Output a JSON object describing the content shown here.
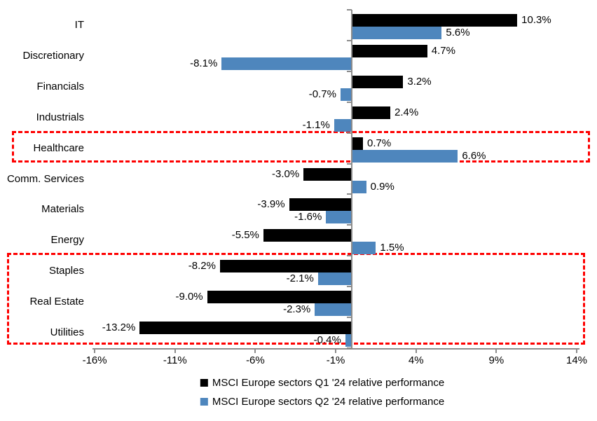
{
  "chart_data": {
    "type": "bar",
    "orientation": "horizontal",
    "title": "",
    "xlabel": "",
    "ylabel": "",
    "xlim": [
      -16,
      14
    ],
    "grid": false,
    "legend_position": "bottom",
    "categories": [
      "IT",
      "Discretionary",
      "Financials",
      "Industrials",
      "Healthcare",
      "Comm. Services",
      "Materials",
      "Energy",
      "Staples",
      "Real Estate",
      "Utilities"
    ],
    "series": [
      {
        "name": "MSCI Europe sectors Q1 '24 relative performance",
        "color": "#000000",
        "values": [
          10.3,
          4.7,
          3.2,
          2.4,
          0.7,
          -3.0,
          -3.9,
          -5.5,
          -8.2,
          -9.0,
          -13.2
        ],
        "labels": [
          "10.3%",
          "4.7%",
          "3.2%",
          "2.4%",
          "0.7%",
          "-3.0%",
          "-3.9%",
          "-5.5%",
          "-8.2%",
          "-9.0%",
          "-13.2%"
        ]
      },
      {
        "name": "MSCI Europe sectors Q2 '24 relative performance",
        "color": "#4e86bd",
        "values": [
          5.6,
          -8.1,
          -0.7,
          -1.1,
          6.6,
          0.9,
          -1.6,
          1.5,
          -2.1,
          -2.3,
          -0.4
        ],
        "labels": [
          "5.6%",
          "-8.1%",
          "-0.7%",
          "-1.1%",
          "6.6%",
          "0.9%",
          "-1.6%",
          "1.5%",
          "-2.1%",
          "-2.3%",
          "-0.4%"
        ]
      }
    ],
    "x_ticks": [
      {
        "label": "-16%",
        "value": -16
      },
      {
        "label": "-11%",
        "value": -11
      },
      {
        "label": "-6%",
        "value": -6
      },
      {
        "label": "-1%",
        "value": -1
      },
      {
        "label": "4%",
        "value": 4
      },
      {
        "label": "9%",
        "value": 9
      },
      {
        "label": "14%",
        "value": 14
      }
    ],
    "highlights": [
      {
        "categories": [
          "Healthcare"
        ],
        "color": "#fe0000",
        "style": "dashed"
      },
      {
        "categories": [
          "Staples",
          "Real Estate",
          "Utilities"
        ],
        "color": "#fe0000",
        "style": "dashed"
      }
    ]
  }
}
